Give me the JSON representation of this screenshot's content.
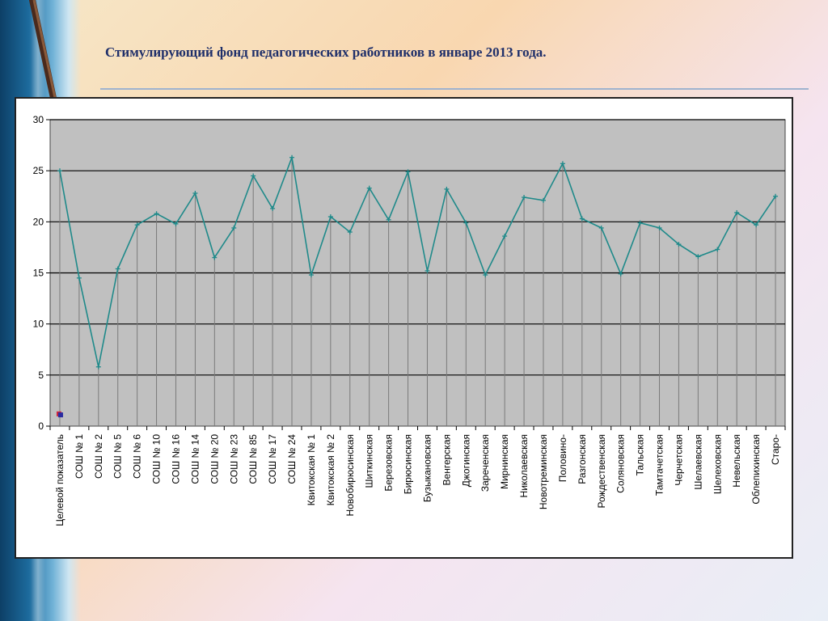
{
  "title": "Стимулирующий фонд педагогических работников в январе 2013 года.",
  "chart_data": {
    "type": "line",
    "title": "Стимулирующий фонд педагогических работников в январе 2013 года.",
    "xlabel": "",
    "ylabel": "",
    "ylim": [
      0,
      30
    ],
    "yticks": [
      0,
      5,
      10,
      15,
      20,
      25,
      30
    ],
    "grid": true,
    "legend": "none",
    "categories": [
      "Целевой показатель",
      "СОШ № 1",
      "СОШ № 2",
      "СОШ № 5",
      "СОШ № 6",
      "СОШ № 10",
      "СОШ № 16",
      "СОШ № 14",
      "СОШ № 20",
      "СОШ № 23",
      "СОШ № 85",
      "СОШ № 17",
      "СОШ № 24",
      "Квитокская № 1",
      "Квитокская  № 2",
      "Новобирюсинская",
      "Шиткинская",
      "Березовская",
      "Бирюсинская",
      "Бузыкановская",
      "Венгерская",
      "Джогинская",
      "Зареченская",
      "Мирнинская",
      "Николаевская",
      "Новотреминская",
      "Половино-",
      "Разгонская",
      "Рождественская",
      "Соляновская",
      "Тальская",
      "Тамтачетская",
      "Черчетская",
      "Шелаевская",
      "Шелеховская",
      "Невельская",
      "Облепихинская",
      "Старо-"
    ],
    "series": [
      {
        "values": [
          25.0,
          14.5,
          5.8,
          15.4,
          19.7,
          20.8,
          19.8,
          22.8,
          16.5,
          19.4,
          24.5,
          21.3,
          26.3,
          14.8,
          20.5,
          19.0,
          23.3,
          20.2,
          24.9,
          15.2,
          23.2,
          19.9,
          14.8,
          18.6,
          22.4,
          22.1,
          25.7,
          20.3,
          19.4,
          14.9,
          19.9,
          19.4,
          17.8,
          16.6,
          17.3,
          20.9,
          19.7,
          22.5
        ],
        "color": "#1f8a8a"
      }
    ],
    "extra_markers": [
      {
        "x": "Целевой показатель",
        "y": 1.2,
        "color": "#d0243c"
      },
      {
        "x": "Целевой показатель",
        "y": 1.1,
        "color": "#2a2aa0"
      }
    ],
    "colors": {
      "plot_bg": "#c0c0c0",
      "gridline": "#000000",
      "drop_line": "#7a7a7a"
    }
  }
}
